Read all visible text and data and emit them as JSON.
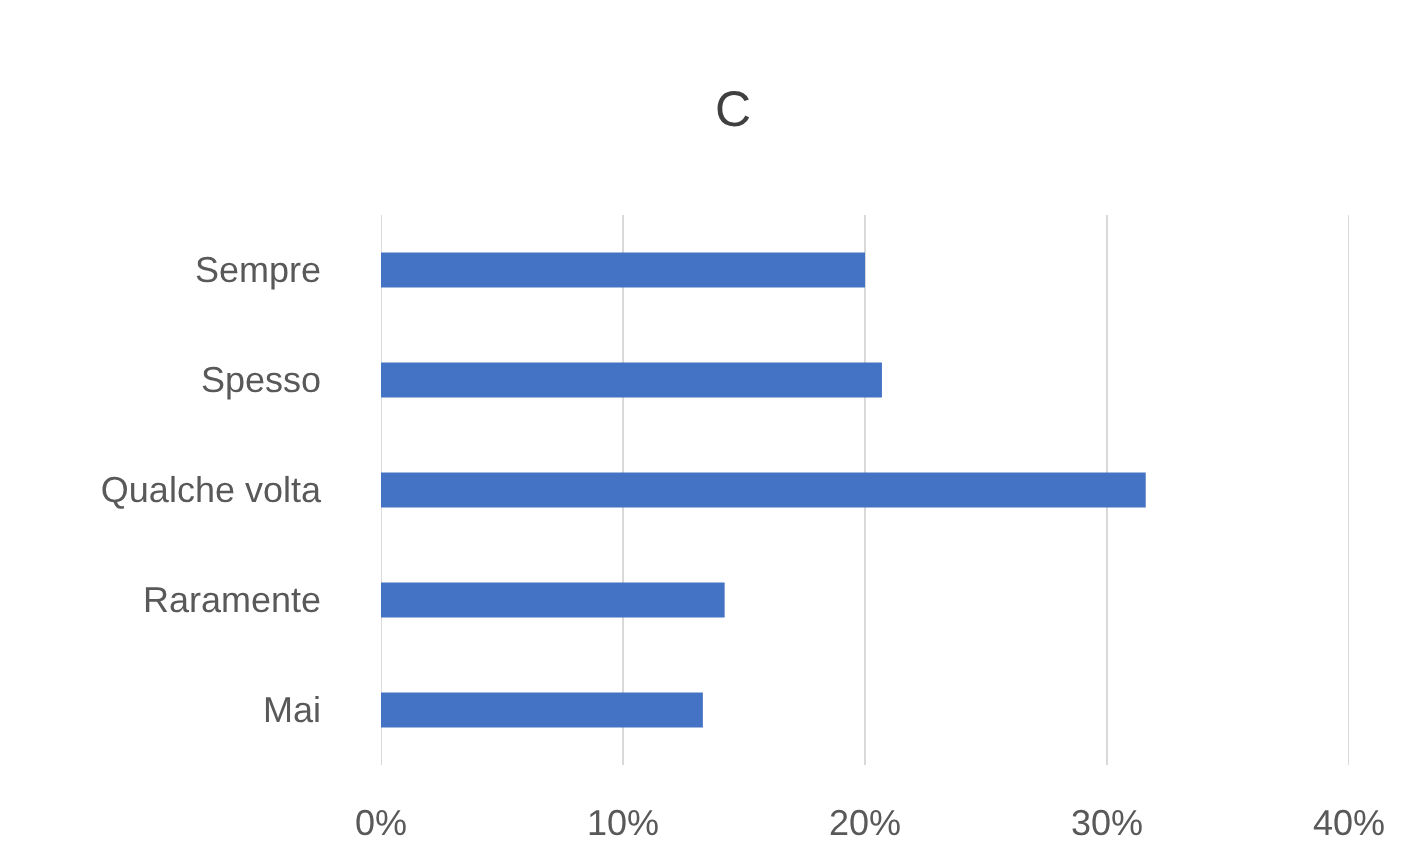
{
  "chart_data": {
    "type": "bar",
    "orientation": "horizontal",
    "title": "C",
    "categories": [
      "Sempre",
      "Spesso",
      "Qualche volta",
      "Raramente",
      "Mai"
    ],
    "values": [
      20,
      20.7,
      31.6,
      14.2,
      13.3
    ],
    "color": "#4472c4",
    "xlim": [
      0,
      40
    ],
    "xticks": [
      {
        "value": 0,
        "label": "0%"
      },
      {
        "value": 10,
        "label": "10%"
      },
      {
        "value": 20,
        "label": "20%"
      },
      {
        "value": 30,
        "label": "30%"
      },
      {
        "value": 40,
        "label": "40%"
      }
    ],
    "grid": "x"
  }
}
